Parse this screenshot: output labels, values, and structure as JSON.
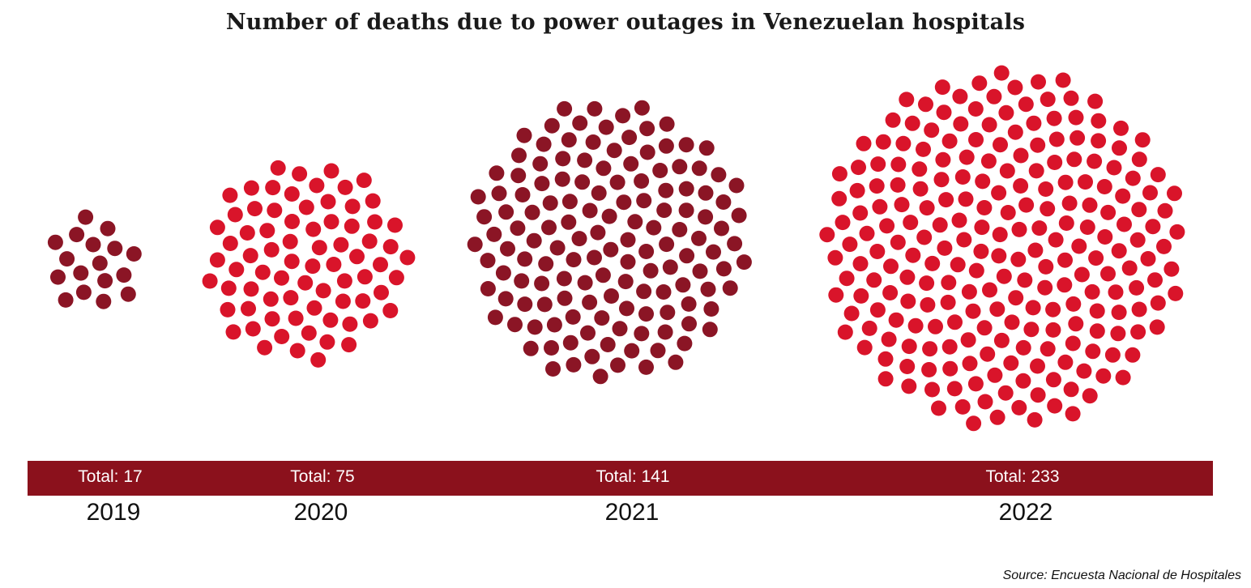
{
  "chart_data": {
    "type": "unit-dot",
    "title": "Number of deaths due to power outages in Venezuelan hospitals",
    "total_prefix": "Total: ",
    "categories": [
      "2019",
      "2020",
      "2021",
      "2022"
    ],
    "values": [
      17,
      75,
      141,
      233
    ],
    "colors": [
      "#8b1525",
      "#d9142a",
      "#8b1525",
      "#d9142a"
    ],
    "bar_color": "#8b111c",
    "source": "Source: Encuesta Nacional de Hospitales"
  }
}
